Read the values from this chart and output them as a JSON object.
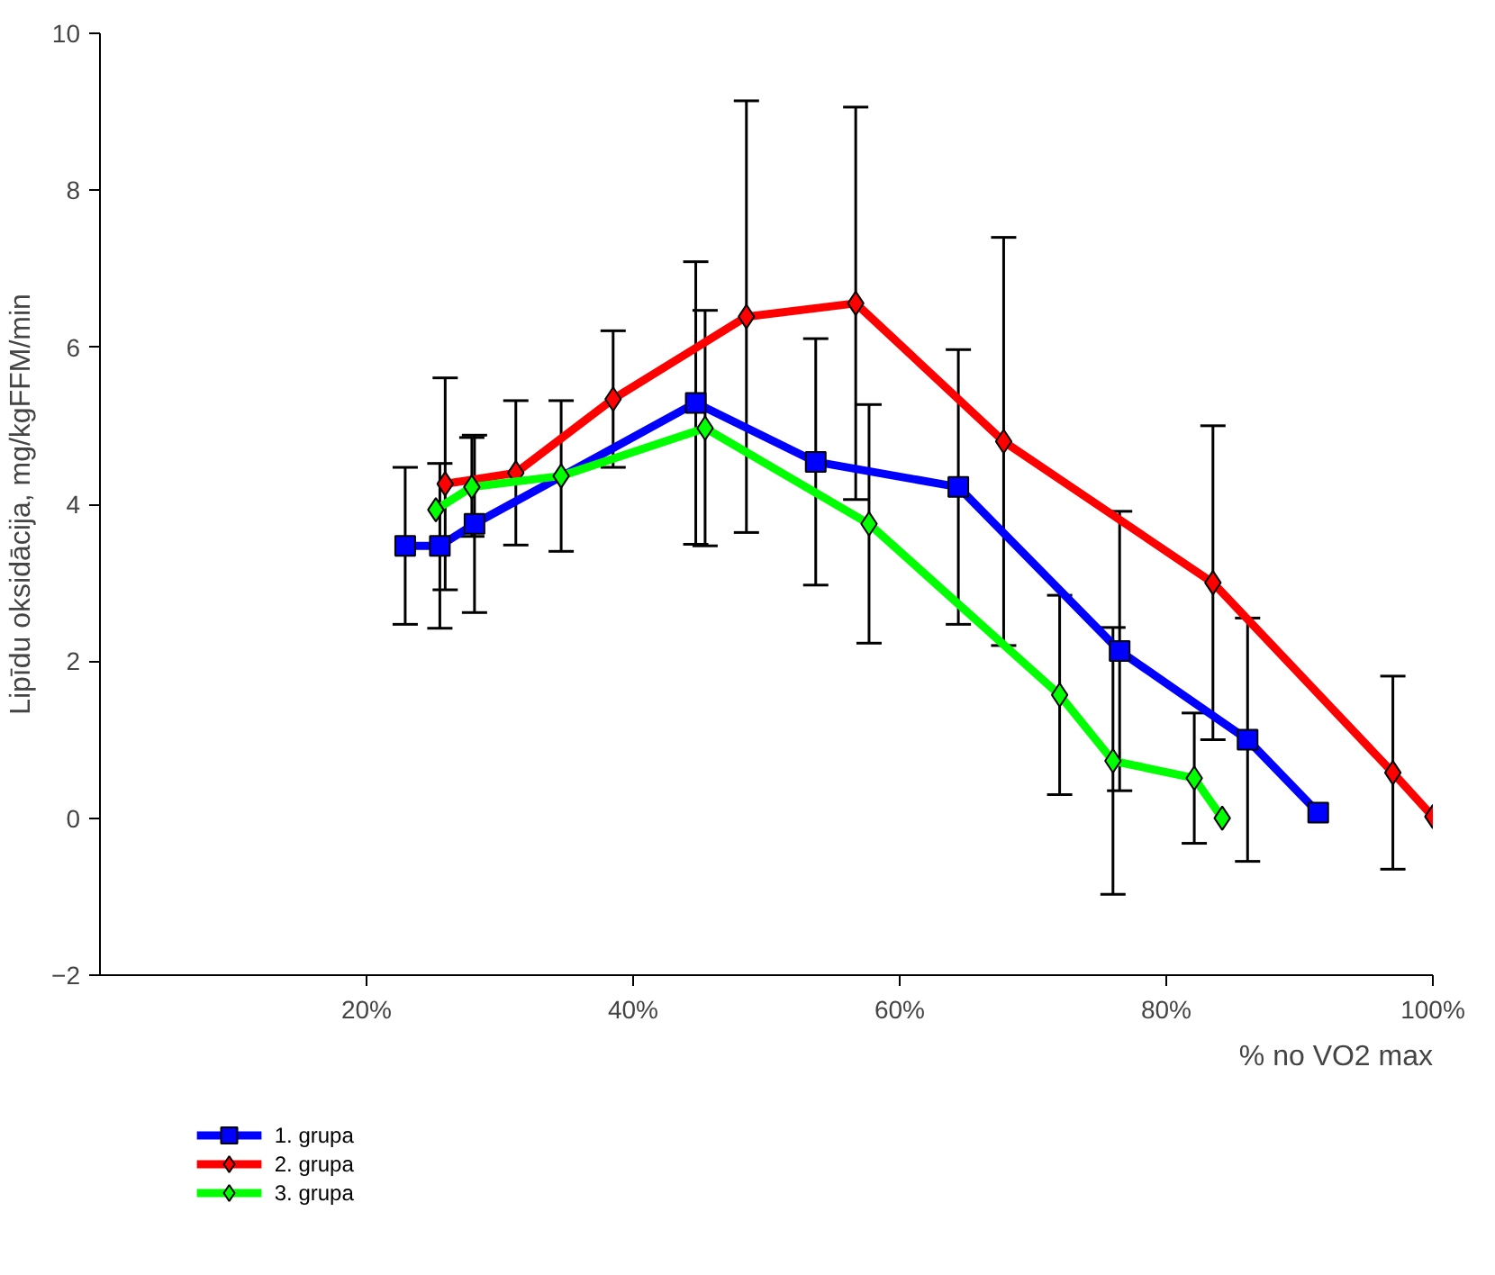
{
  "chart_data": {
    "type": "line",
    "xlabel": "% no VO2 max",
    "ylabel": "Lipīdu oksidācija, mg/kgFFM/min",
    "xlim": [
      0,
      100
    ],
    "ylim": [
      -2,
      10
    ],
    "xticks": [
      {
        "value": 20,
        "label": "20%"
      },
      {
        "value": 40,
        "label": "40%"
      },
      {
        "value": 60,
        "label": "60%"
      },
      {
        "value": 80,
        "label": "80%"
      },
      {
        "value": 100,
        "label": "100%"
      }
    ],
    "yticks": [
      -2,
      0,
      2,
      4,
      6,
      8,
      10
    ],
    "grid": false,
    "legend": "bottom left",
    "line_style": "solid",
    "series": [
      {
        "name": "1. grupa",
        "color": "#0000ff",
        "marker": "square",
        "x": [
          22.9,
          25.5,
          28.1,
          44.7,
          53.7,
          64.4,
          76.5,
          86.1,
          91.4
        ],
        "values": [
          3.47,
          3.47,
          3.75,
          5.29,
          4.54,
          4.22,
          2.13,
          1.0,
          0.07
        ],
        "errors": [
          1.0,
          1.05,
          1.13,
          1.8,
          1.57,
          1.75,
          1.78,
          1.55,
          null
        ]
      },
      {
        "name": "2. grupa",
        "color": "#ff0000",
        "marker": "diamond",
        "x": [
          25.9,
          31.2,
          38.5,
          48.5,
          56.7,
          67.8,
          83.5,
          97.0,
          100.0
        ],
        "values": [
          4.26,
          4.4,
          5.34,
          6.39,
          6.56,
          4.8,
          3.0,
          0.58,
          0.02
        ],
        "errors": [
          1.35,
          0.92,
          0.87,
          2.75,
          2.5,
          2.6,
          2.0,
          1.23,
          null
        ]
      },
      {
        "name": "3. grupa",
        "color": "#00ff00",
        "marker": "diamond",
        "x": [
          25.2,
          27.9,
          34.6,
          45.4,
          57.7,
          72.0,
          76.0,
          82.1,
          84.2
        ],
        "values": [
          3.93,
          4.22,
          4.36,
          4.97,
          3.75,
          1.57,
          0.73,
          0.51,
          0.0
        ],
        "errors": [
          null,
          0.63,
          0.96,
          1.5,
          1.52,
          1.27,
          1.7,
          0.83,
          null
        ]
      }
    ]
  }
}
